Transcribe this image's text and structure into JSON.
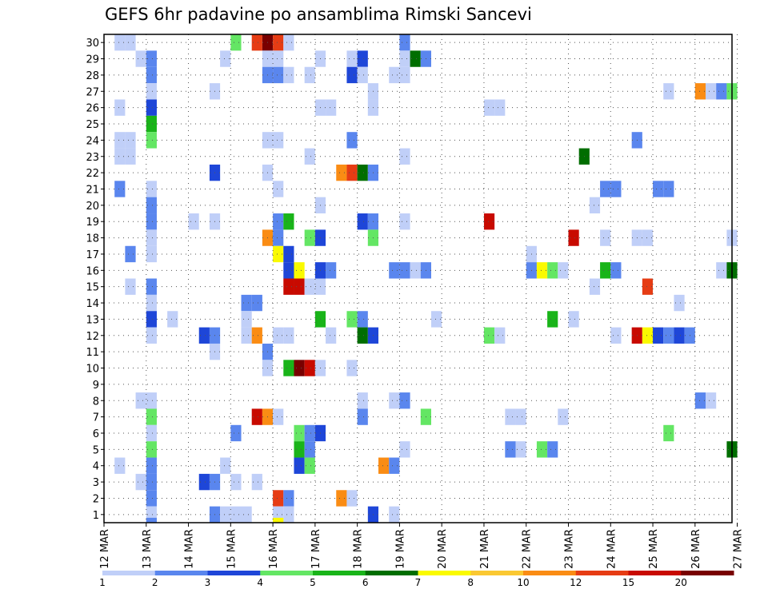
{
  "chart_data": {
    "type": "heatmap",
    "title": "GEFS 6hr padavine po ansamblima Rimski Sancevi",
    "x_ticks": [
      "12 MAR",
      "13 MAR",
      "14 MAR",
      "15 MAR",
      "16 MAR",
      "17 MAR",
      "18 MAR",
      "19 MAR",
      "20 MAR",
      "21 MAR",
      "22 MAR",
      "23 MAR",
      "24 MAR",
      "25 MAR",
      "26 MAR",
      "27 MAR"
    ],
    "y_ticks": [
      "1",
      "2",
      "3",
      "4",
      "5",
      "6",
      "7",
      "8",
      "9",
      "10",
      "11",
      "12",
      "13",
      "14",
      "15",
      "16",
      "17",
      "18",
      "19",
      "20",
      "21",
      "22",
      "23",
      "24",
      "25",
      "26",
      "27",
      "28",
      "29",
      "30"
    ],
    "x_unit": "6-hour steps from 12 MAR 00Z",
    "x_range": [
      0,
      59.5
    ],
    "y_range": [
      0.5,
      30.5
    ],
    "grid": "dotted",
    "legend": {
      "position": "bottom",
      "labels": [
        "1",
        "2",
        "3",
        "4",
        "5",
        "6",
        "7",
        "8",
        "10",
        "12",
        "15",
        "20"
      ],
      "colors": [
        "#c0cff8",
        "#5a86ee",
        "#1e46d8",
        "#64e664",
        "#19b419",
        "#006e00",
        "#fafa00",
        "#fac832",
        "#fa8c14",
        "#e63c14",
        "#c80a00",
        "#780000"
      ]
    },
    "cells": [
      [
        1,
        30,
        0
      ],
      [
        2,
        30,
        0
      ],
      [
        12,
        30,
        3
      ],
      [
        14,
        30,
        9
      ],
      [
        15,
        30,
        11
      ],
      [
        16,
        30,
        9
      ],
      [
        17,
        30,
        0
      ],
      [
        28,
        30,
        1
      ],
      [
        3,
        29,
        0
      ],
      [
        4,
        29,
        1
      ],
      [
        11,
        29,
        0
      ],
      [
        15,
        29,
        0
      ],
      [
        16,
        29,
        0
      ],
      [
        20,
        29,
        0
      ],
      [
        23,
        29,
        0
      ],
      [
        24,
        29,
        2
      ],
      [
        28,
        29,
        0
      ],
      [
        29,
        29,
        5
      ],
      [
        30,
        29,
        1
      ],
      [
        4,
        28,
        1
      ],
      [
        15,
        28,
        1
      ],
      [
        16,
        28,
        1
      ],
      [
        17,
        28,
        0
      ],
      [
        19,
        28,
        0
      ],
      [
        23,
        28,
        2
      ],
      [
        24,
        28,
        0
      ],
      [
        27,
        28,
        0
      ],
      [
        28,
        28,
        0
      ],
      [
        4,
        27,
        0
      ],
      [
        10,
        27,
        0
      ],
      [
        25,
        27,
        0
      ],
      [
        53,
        27,
        0
      ],
      [
        56,
        27,
        8
      ],
      [
        57,
        27,
        0
      ],
      [
        58,
        27,
        1
      ],
      [
        59,
        27,
        3
      ],
      [
        1,
        26,
        0
      ],
      [
        4,
        26,
        2
      ],
      [
        20,
        26,
        0
      ],
      [
        21,
        26,
        0
      ],
      [
        25,
        26,
        0
      ],
      [
        36,
        26,
        0
      ],
      [
        37,
        26,
        0
      ],
      [
        4,
        25,
        4
      ],
      [
        1,
        24,
        0
      ],
      [
        2,
        24,
        0
      ],
      [
        4,
        24,
        3
      ],
      [
        15,
        24,
        0
      ],
      [
        16,
        24,
        0
      ],
      [
        23,
        24,
        1
      ],
      [
        50,
        24,
        1
      ],
      [
        1,
        23,
        0
      ],
      [
        2,
        23,
        0
      ],
      [
        19,
        23,
        0
      ],
      [
        28,
        23,
        0
      ],
      [
        45,
        23,
        5
      ],
      [
        10,
        22,
        2
      ],
      [
        15,
        22,
        0
      ],
      [
        22,
        22,
        8
      ],
      [
        23,
        22,
        9
      ],
      [
        24,
        22,
        5
      ],
      [
        25,
        22,
        1
      ],
      [
        1,
        21,
        1
      ],
      [
        4,
        21,
        0
      ],
      [
        16,
        21,
        0
      ],
      [
        47,
        21,
        1
      ],
      [
        48,
        21,
        1
      ],
      [
        52,
        21,
        1
      ],
      [
        53,
        21,
        1
      ],
      [
        4,
        20,
        1
      ],
      [
        20,
        20,
        0
      ],
      [
        46,
        20,
        0
      ],
      [
        4,
        19,
        1
      ],
      [
        8,
        19,
        0
      ],
      [
        10,
        19,
        0
      ],
      [
        16,
        19,
        1
      ],
      [
        17,
        19,
        4
      ],
      [
        24,
        19,
        2
      ],
      [
        25,
        19,
        1
      ],
      [
        28,
        19,
        0
      ],
      [
        36,
        19,
        10
      ],
      [
        4,
        18,
        0
      ],
      [
        15,
        18,
        8
      ],
      [
        16,
        18,
        1
      ],
      [
        19,
        18,
        3
      ],
      [
        20,
        18,
        2
      ],
      [
        25,
        18,
        3
      ],
      [
        44,
        18,
        10
      ],
      [
        47,
        18,
        0
      ],
      [
        50,
        18,
        0
      ],
      [
        51,
        18,
        0
      ],
      [
        59,
        18,
        0
      ],
      [
        2,
        17,
        1
      ],
      [
        4,
        17,
        0
      ],
      [
        16,
        17,
        6
      ],
      [
        17,
        17,
        2
      ],
      [
        40,
        17,
        0
      ],
      [
        17,
        16,
        2
      ],
      [
        18,
        16,
        6
      ],
      [
        20,
        16,
        2
      ],
      [
        21,
        16,
        1
      ],
      [
        27,
        16,
        1
      ],
      [
        28,
        16,
        1
      ],
      [
        29,
        16,
        0
      ],
      [
        30,
        16,
        1
      ],
      [
        40,
        16,
        1
      ],
      [
        41,
        16,
        6
      ],
      [
        42,
        16,
        3
      ],
      [
        43,
        16,
        0
      ],
      [
        47,
        16,
        4
      ],
      [
        48,
        16,
        1
      ],
      [
        58,
        16,
        0
      ],
      [
        59,
        16,
        5
      ],
      [
        2,
        15,
        0
      ],
      [
        4,
        15,
        1
      ],
      [
        17,
        15,
        10
      ],
      [
        18,
        15,
        10
      ],
      [
        19,
        15,
        0
      ],
      [
        20,
        15,
        0
      ],
      [
        46,
        15,
        0
      ],
      [
        51,
        15,
        9
      ],
      [
        4,
        14,
        0
      ],
      [
        13,
        14,
        1
      ],
      [
        14,
        14,
        1
      ],
      [
        54,
        14,
        0
      ],
      [
        4,
        13,
        2
      ],
      [
        6,
        13,
        0
      ],
      [
        13,
        13,
        0
      ],
      [
        20,
        13,
        4
      ],
      [
        23,
        13,
        3
      ],
      [
        24,
        13,
        1
      ],
      [
        31,
        13,
        0
      ],
      [
        42,
        13,
        4
      ],
      [
        44,
        13,
        0
      ],
      [
        4,
        12,
        0
      ],
      [
        9,
        12,
        2
      ],
      [
        10,
        12,
        1
      ],
      [
        13,
        12,
        0
      ],
      [
        14,
        12,
        8
      ],
      [
        16,
        12,
        0
      ],
      [
        17,
        12,
        0
      ],
      [
        21,
        12,
        0
      ],
      [
        24,
        12,
        5
      ],
      [
        25,
        12,
        2
      ],
      [
        36,
        12,
        3
      ],
      [
        37,
        12,
        0
      ],
      [
        48,
        12,
        0
      ],
      [
        50,
        12,
        10
      ],
      [
        51,
        12,
        6
      ],
      [
        52,
        12,
        2
      ],
      [
        53,
        12,
        1
      ],
      [
        54,
        12,
        2
      ],
      [
        55,
        12,
        1
      ],
      [
        10,
        11,
        0
      ],
      [
        15,
        11,
        1
      ],
      [
        15,
        10,
        0
      ],
      [
        17,
        10,
        4
      ],
      [
        18,
        10,
        11
      ],
      [
        19,
        10,
        10
      ],
      [
        20,
        10,
        0
      ],
      [
        23,
        10,
        0
      ],
      [
        3,
        8,
        0
      ],
      [
        4,
        8,
        0
      ],
      [
        24,
        8,
        0
      ],
      [
        27,
        8,
        0
      ],
      [
        28,
        8,
        1
      ],
      [
        56,
        8,
        1
      ],
      [
        57,
        8,
        0
      ],
      [
        4,
        7,
        3
      ],
      [
        14,
        7,
        10
      ],
      [
        15,
        7,
        8
      ],
      [
        16,
        7,
        0
      ],
      [
        24,
        7,
        1
      ],
      [
        30,
        7,
        3
      ],
      [
        38,
        7,
        0
      ],
      [
        39,
        7,
        0
      ],
      [
        43,
        7,
        0
      ],
      [
        4,
        6,
        0
      ],
      [
        12,
        6,
        1
      ],
      [
        18,
        6,
        3
      ],
      [
        19,
        6,
        1
      ],
      [
        20,
        6,
        2
      ],
      [
        53,
        6,
        3
      ],
      [
        4,
        5,
        3
      ],
      [
        18,
        5,
        4
      ],
      [
        19,
        5,
        1
      ],
      [
        28,
        5,
        0
      ],
      [
        38,
        5,
        1
      ],
      [
        39,
        5,
        0
      ],
      [
        41,
        5,
        3
      ],
      [
        42,
        5,
        1
      ],
      [
        59,
        5,
        5
      ],
      [
        1,
        4,
        0
      ],
      [
        4,
        4,
        1
      ],
      [
        11,
        4,
        0
      ],
      [
        18,
        4,
        2
      ],
      [
        19,
        4,
        3
      ],
      [
        26,
        4,
        8
      ],
      [
        27,
        4,
        1
      ],
      [
        3,
        3,
        0
      ],
      [
        4,
        3,
        1
      ],
      [
        9,
        3,
        2
      ],
      [
        10,
        3,
        1
      ],
      [
        12,
        3,
        0
      ],
      [
        14,
        3,
        0
      ],
      [
        4,
        2,
        1
      ],
      [
        16,
        2,
        9
      ],
      [
        17,
        2,
        1
      ],
      [
        22,
        2,
        8
      ],
      [
        23,
        2,
        0
      ],
      [
        4,
        1,
        0
      ],
      [
        10,
        1,
        1
      ],
      [
        11,
        1,
        0
      ],
      [
        12,
        1,
        0
      ],
      [
        13,
        1,
        0
      ],
      [
        16,
        1,
        0
      ],
      [
        17,
        1,
        0
      ],
      [
        25,
        1,
        2
      ],
      [
        27,
        1,
        0
      ],
      [
        4,
        0.3,
        1
      ],
      [
        16,
        0.3,
        6
      ]
    ]
  }
}
